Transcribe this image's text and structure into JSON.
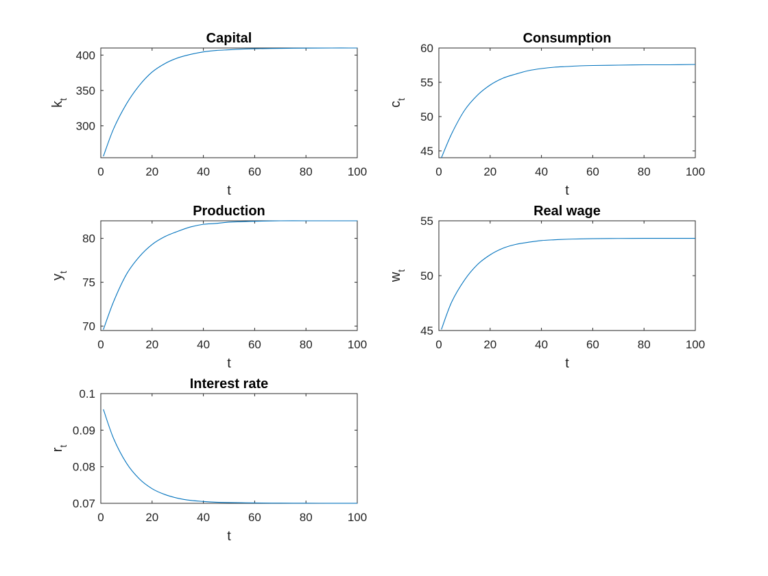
{
  "figure": {
    "background": "#ffffff"
  },
  "chart_data": [
    {
      "type": "line",
      "title": "Capital",
      "xlabel": "t",
      "ylabel": {
        "base": "k",
        "sub": "t"
      },
      "xlim": [
        0,
        100
      ],
      "ylim": [
        255,
        410
      ],
      "xticks": [
        0,
        20,
        40,
        60,
        80,
        100
      ],
      "yticks": [
        300,
        350,
        400
      ],
      "grid": false,
      "series": [
        {
          "color": "#0072BD",
          "x": [
            1,
            5,
            10,
            15,
            20,
            25,
            30,
            35,
            40,
            45,
            50,
            55,
            60,
            70,
            80,
            90,
            100
          ],
          "y": [
            257,
            296,
            331,
            357,
            376,
            388,
            396,
            401,
            404.5,
            406.5,
            407.5,
            408.5,
            409,
            409.5,
            409.8,
            410,
            410
          ]
        }
      ]
    },
    {
      "type": "line",
      "title": "Consumption",
      "xlabel": "t",
      "ylabel": {
        "base": "c",
        "sub": "t"
      },
      "xlim": [
        0,
        100
      ],
      "ylim": [
        44,
        60
      ],
      "xticks": [
        0,
        20,
        40,
        60,
        80,
        100
      ],
      "yticks": [
        45,
        50,
        55,
        60
      ],
      "grid": false,
      "series": [
        {
          "color": "#0072BD",
          "x": [
            1,
            5,
            10,
            15,
            20,
            25,
            30,
            35,
            40,
            45,
            50,
            55,
            60,
            70,
            80,
            90,
            100
          ],
          "y": [
            44.0,
            47.5,
            50.9,
            53.1,
            54.6,
            55.6,
            56.2,
            56.7,
            57.0,
            57.2,
            57.3,
            57.4,
            57.45,
            57.5,
            57.55,
            57.55,
            57.6
          ]
        }
      ]
    },
    {
      "type": "line",
      "title": "Production",
      "xlabel": "t",
      "ylabel": {
        "base": "y",
        "sub": "t"
      },
      "xlim": [
        0,
        100
      ],
      "ylim": [
        69.5,
        82
      ],
      "xticks": [
        0,
        20,
        40,
        60,
        80,
        100
      ],
      "yticks": [
        70,
        75,
        80
      ],
      "grid": false,
      "series": [
        {
          "color": "#0072BD",
          "x": [
            1,
            5,
            10,
            15,
            20,
            25,
            30,
            35,
            40,
            45,
            50,
            55,
            60,
            70,
            80,
            90,
            100
          ],
          "y": [
            69.6,
            72.8,
            75.9,
            77.9,
            79.3,
            80.2,
            80.8,
            81.3,
            81.6,
            81.7,
            81.85,
            81.9,
            81.95,
            82.0,
            82.0,
            82.0,
            82.0
          ]
        }
      ]
    },
    {
      "type": "line",
      "title": "Real wage",
      "xlabel": "t",
      "ylabel": {
        "base": "w",
        "sub": "t"
      },
      "xlim": [
        0,
        100
      ],
      "ylim": [
        45,
        55
      ],
      "xticks": [
        0,
        20,
        40,
        60,
        80,
        100
      ],
      "yticks": [
        45,
        50,
        55
      ],
      "grid": false,
      "series": [
        {
          "color": "#0072BD",
          "x": [
            1,
            5,
            10,
            15,
            20,
            25,
            30,
            35,
            40,
            45,
            50,
            55,
            60,
            70,
            80,
            90,
            100
          ],
          "y": [
            45.1,
            47.6,
            49.6,
            51.0,
            51.9,
            52.5,
            52.85,
            53.05,
            53.2,
            53.27,
            53.32,
            53.35,
            53.37,
            53.39,
            53.4,
            53.4,
            53.4
          ]
        }
      ]
    },
    {
      "type": "line",
      "title": "Interest rate",
      "xlabel": "t",
      "ylabel": {
        "base": "r",
        "sub": "t"
      },
      "xlim": [
        0,
        100
      ],
      "ylim": [
        0.07,
        0.1
      ],
      "xticks": [
        0,
        20,
        40,
        60,
        80,
        100
      ],
      "yticks": [
        0.07,
        0.08,
        0.09,
        0.1
      ],
      "grid": false,
      "series": [
        {
          "color": "#0072BD",
          "x": [
            1,
            5,
            10,
            15,
            20,
            25,
            30,
            35,
            40,
            45,
            50,
            55,
            60,
            70,
            80,
            90,
            100
          ],
          "y": [
            0.0957,
            0.0877,
            0.081,
            0.0767,
            0.074,
            0.0724,
            0.0714,
            0.0708,
            0.0705,
            0.0703,
            0.0702,
            0.07015,
            0.0701,
            0.07005,
            0.07003,
            0.07002,
            0.07001
          ]
        }
      ]
    }
  ]
}
